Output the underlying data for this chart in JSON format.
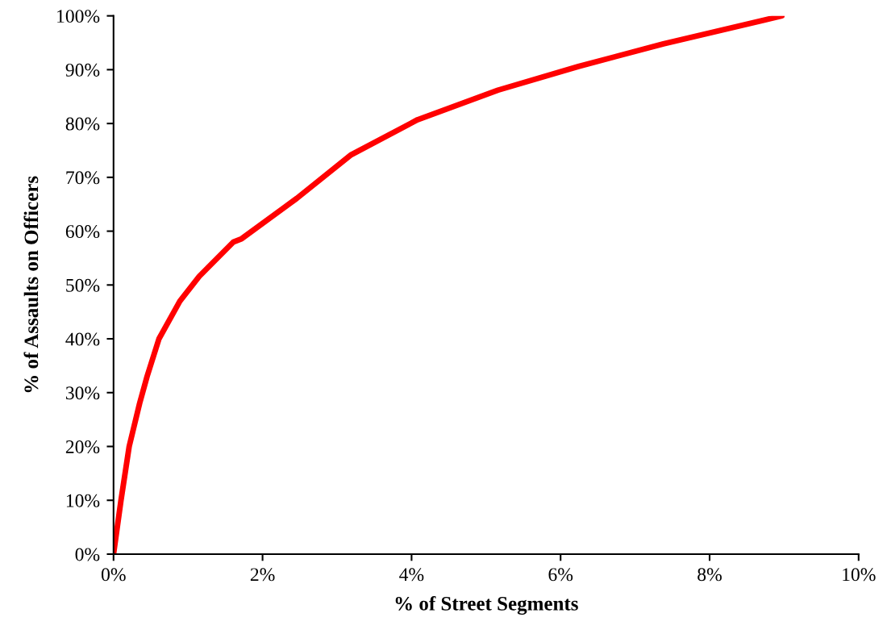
{
  "chart_data": {
    "type": "line",
    "xlabel": "% of Street Segments",
    "ylabel": "% of Assaults on Officers",
    "x": [
      0,
      0.1,
      0.21,
      0.35,
      0.45,
      0.61,
      0.89,
      1.15,
      1.61,
      1.72,
      2.46,
      3.19,
      4.08,
      5.16,
      6.24,
      7.38,
      8.7,
      8.97
    ],
    "series": [
      {
        "color": "#ff0000",
        "values": [
          0,
          10,
          20,
          28,
          33,
          40,
          47,
          51.6,
          58,
          58.6,
          66.1,
          74.2,
          80.7,
          86.2,
          90.6,
          94.8,
          99.1,
          100
        ]
      }
    ],
    "xlim": [
      0,
      10
    ],
    "ylim": [
      0,
      100
    ],
    "xticks": [
      {
        "value": 0,
        "label": "0%"
      },
      {
        "value": 2,
        "label": "2%"
      },
      {
        "value": 4,
        "label": "4%"
      },
      {
        "value": 6,
        "label": "6%"
      },
      {
        "value": 8,
        "label": "8%"
      },
      {
        "value": 10,
        "label": "10%"
      }
    ],
    "yticks": [
      {
        "value": 0,
        "label": "0%"
      },
      {
        "value": 10,
        "label": "10%"
      },
      {
        "value": 20,
        "label": "20%"
      },
      {
        "value": 30,
        "label": "30%"
      },
      {
        "value": 40,
        "label": "40%"
      },
      {
        "value": 50,
        "label": "50%"
      },
      {
        "value": 60,
        "label": "60%"
      },
      {
        "value": 70,
        "label": "70%"
      },
      {
        "value": 80,
        "label": "80%"
      },
      {
        "value": 90,
        "label": "90%"
      },
      {
        "value": 100,
        "label": "100%"
      }
    ],
    "grid": false,
    "legend": false,
    "marker": "none",
    "line_style": "solid"
  }
}
